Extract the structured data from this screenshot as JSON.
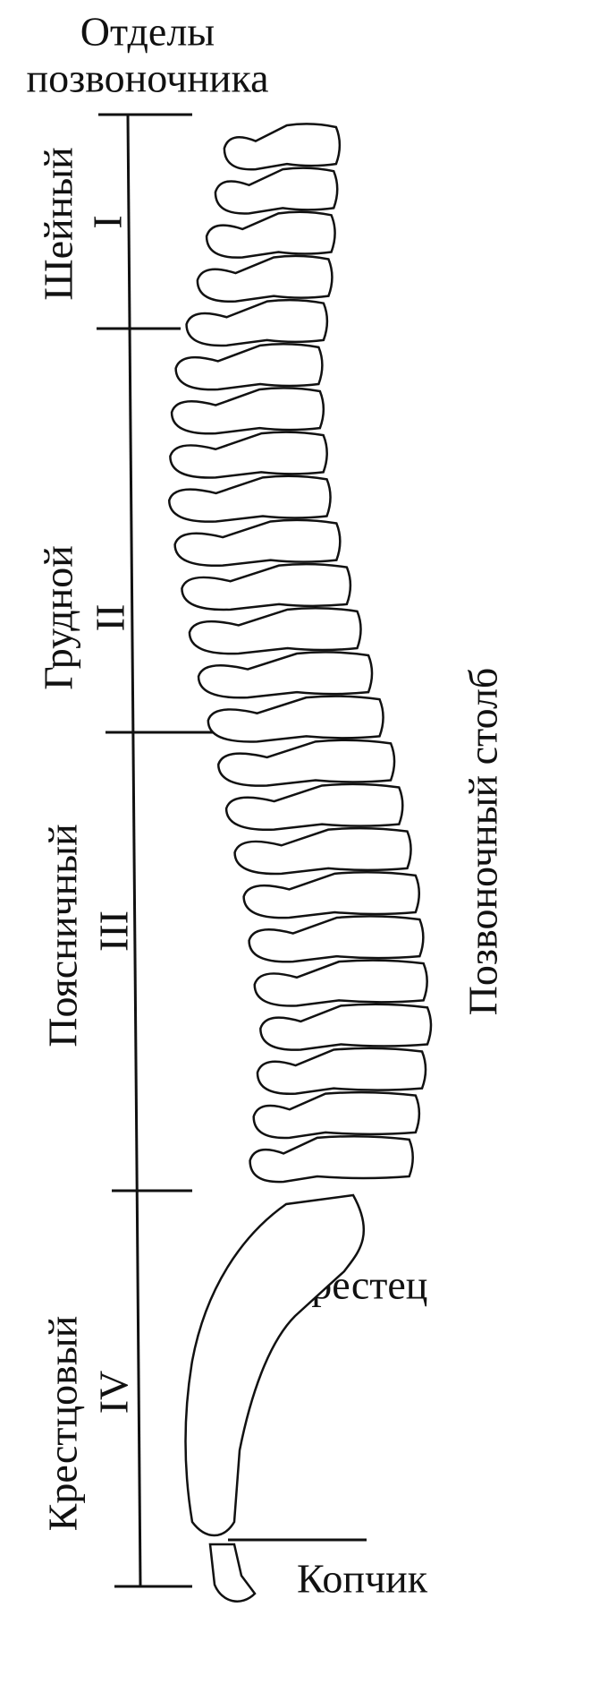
{
  "header": {
    "title_lines": [
      "Отделы",
      "позвоночника"
    ]
  },
  "sections": [
    {
      "name": "Шейный",
      "numeral": "I"
    },
    {
      "name": "Грудной",
      "numeral": "II"
    },
    {
      "name": "Поясничный",
      "numeral": "III"
    },
    {
      "name": "Крестцовый",
      "numeral": "IV"
    }
  ],
  "labels": {
    "column": "Позвоночный столб",
    "sacrum": "Крестец",
    "coccyx": "Копчик"
  }
}
